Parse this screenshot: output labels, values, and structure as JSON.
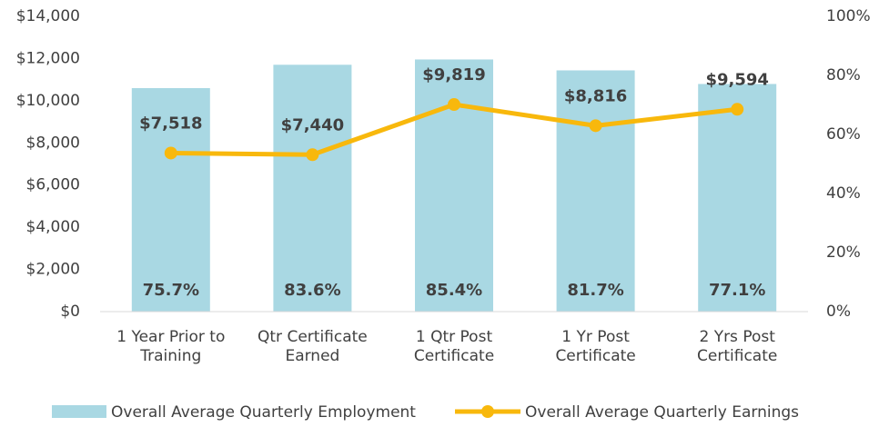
{
  "chart_data": {
    "type": "bar-line",
    "categories": [
      "1 Year Prior to Training",
      "Qtr Certificate Earned",
      "1 Qtr Post Certificate",
      "1 Yr Post Certificate",
      "2 Yrs Post Certificate"
    ],
    "series": [
      {
        "name": "Overall Average Quarterly Employment",
        "type": "bar",
        "axis": "y2",
        "color": "#a9d8e3",
        "values": [
          75.7,
          83.6,
          85.4,
          81.7,
          77.1
        ],
        "value_labels": [
          "75.7%",
          "83.6%",
          "85.4%",
          "81.7%",
          "77.1%"
        ]
      },
      {
        "name": "Overall Average Quarterly Earnings",
        "type": "line",
        "axis": "y",
        "color": "#f8b80c",
        "values": [
          7518,
          7440,
          9819,
          8816,
          9594
        ],
        "value_labels": [
          "$7,518",
          "$7,440",
          "$9,819",
          "$8,816",
          "$9,594"
        ]
      }
    ],
    "ylim": [
      0,
      14000
    ],
    "yticks": [
      {
        "value": 0,
        "label": "$0"
      },
      {
        "value": 2000,
        "label": "$2,000"
      },
      {
        "value": 4000,
        "label": "$4,000"
      },
      {
        "value": 6000,
        "label": "$6,000"
      },
      {
        "value": 8000,
        "label": "$8,000"
      },
      {
        "value": 10000,
        "label": "$10,000"
      },
      {
        "value": 12000,
        "label": "$12,000"
      },
      {
        "value": 14000,
        "label": "$14,000"
      }
    ],
    "y2lim": [
      0,
      100
    ],
    "y2ticks": [
      {
        "value": 0,
        "label": "0%"
      },
      {
        "value": 20,
        "label": "20%"
      },
      {
        "value": 40,
        "label": "40%"
      },
      {
        "value": 60,
        "label": "60%"
      },
      {
        "value": 80,
        "label": "80%"
      },
      {
        "value": 100,
        "label": "100%"
      }
    ],
    "legend": "bottom"
  }
}
